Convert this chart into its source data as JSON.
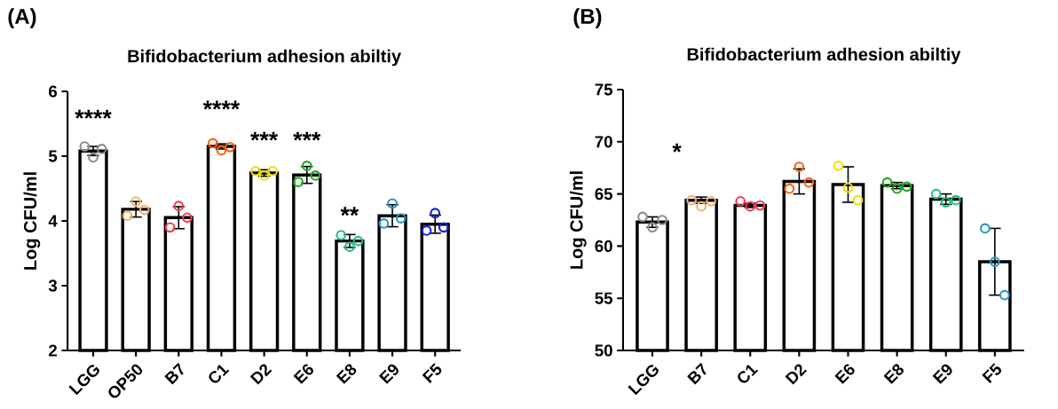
{
  "chart_data": [
    {
      "type": "bar",
      "title": "Bifidobacterium adhesion abiltiy",
      "ylabel": "Log CFU/ml",
      "categories": [
        "LGG",
        "OP50",
        "B7",
        "C1",
        "D2",
        "E6",
        "E8",
        "E9",
        "F5"
      ],
      "ylim": [
        2,
        6
      ],
      "yticks": [
        2,
        3,
        4,
        5,
        6
      ],
      "marker": "circle",
      "series": [
        {
          "color": "#ffffff",
          "values": [
            5.08,
            4.18,
            4.05,
            5.15,
            4.74,
            4.71,
            3.69,
            4.08,
            3.95
          ],
          "errors": [
            0.07,
            0.12,
            0.17,
            0.04,
            0.05,
            0.13,
            0.1,
            0.17,
            0.14
          ]
        },
        {
          "type": "scatter",
          "x": [
            "LGG",
            "LGG",
            "LGG",
            "OP50",
            "OP50",
            "OP50",
            "B7",
            "B7",
            "B7",
            "C1",
            "C1",
            "C1",
            "D2",
            "D2",
            "D2",
            "E6",
            "E6",
            "E6",
            "E8",
            "E8",
            "E8",
            "E9",
            "E9",
            "E9",
            "F5",
            "F5",
            "F5"
          ],
          "values": [
            5.15,
            4.98,
            5.11,
            4.08,
            4.3,
            4.17,
            3.9,
            4.23,
            4.05,
            5.2,
            5.09,
            5.14,
            4.77,
            4.7,
            4.77,
            4.6,
            4.85,
            4.7,
            3.78,
            3.6,
            3.69,
            3.96,
            4.27,
            4.04,
            3.85,
            4.12,
            3.9
          ],
          "colors": [
            "#8c8c8c",
            "#8c8c8c",
            "#8c8c8c",
            "#f0b070",
            "#f0b070",
            "#f0b070",
            "#f04050",
            "#f04050",
            "#f04050",
            "#ff6010",
            "#ff6010",
            "#ff6010",
            "#f0e000",
            "#f0e000",
            "#f0e000",
            "#20a820",
            "#20a820",
            "#20a820",
            "#20c080",
            "#20c080",
            "#20c080",
            "#2898c0",
            "#2898c0",
            "#2898c0",
            "#1020e0",
            "#1020e0",
            "#1020e0"
          ]
        }
      ],
      "annotations": [
        "(A)",
        "****",
        "****",
        "***",
        "***",
        "**"
      ]
    },
    {
      "type": "bar",
      "title": "Bifidobacterium adhesion abiltiy",
      "ylabel": "Log CFU/ml",
      "categories": [
        "LGG",
        "B7",
        "C1",
        "D2",
        "E6",
        "E8",
        "E9",
        "F5"
      ],
      "ylim": [
        50,
        75
      ],
      "yticks": [
        50,
        55,
        60,
        65,
        70,
        75
      ],
      "marker": "circle",
      "series": [
        {
          "color": "#ffffff",
          "values": [
            62.3,
            64.4,
            63.9,
            66.2,
            65.9,
            65.8,
            64.5,
            58.5
          ],
          "errors": [
            0.5,
            0.3,
            0.2,
            1.2,
            1.7,
            0.3,
            0.5,
            3.2
          ]
        },
        {
          "type": "scatter",
          "x": [
            "LGG",
            "LGG",
            "LGG",
            "B7",
            "B7",
            "B7",
            "C1",
            "C1",
            "C1",
            "D2",
            "D2",
            "D2",
            "E6",
            "E6",
            "E6",
            "E8",
            "E8",
            "E8",
            "E9",
            "E9",
            "E9",
            "F5",
            "F5",
            "F5"
          ],
          "values": [
            62.8,
            61.8,
            62.5,
            64.4,
            63.8,
            64.3,
            64.3,
            63.8,
            63.9,
            65.5,
            67.6,
            66.1,
            67.7,
            65.6,
            64.4,
            66.1,
            65.5,
            65.7,
            65.0,
            64.2,
            64.4,
            61.7,
            58.5,
            55.3
          ],
          "colors": [
            "#8c8c8c",
            "#8c8c8c",
            "#8c8c8c",
            "#f0b070",
            "#f0b070",
            "#f0b070",
            "#f04050",
            "#f04050",
            "#f04050",
            "#ff6010",
            "#ff6010",
            "#ff6010",
            "#f0e000",
            "#f0e000",
            "#f0e000",
            "#20a820",
            "#20a820",
            "#20a820",
            "#20c080",
            "#20c080",
            "#20c080",
            "#2898c0",
            "#2898c0",
            "#2898c0"
          ]
        }
      ],
      "annotations": [
        "(B)",
        "*"
      ]
    }
  ]
}
